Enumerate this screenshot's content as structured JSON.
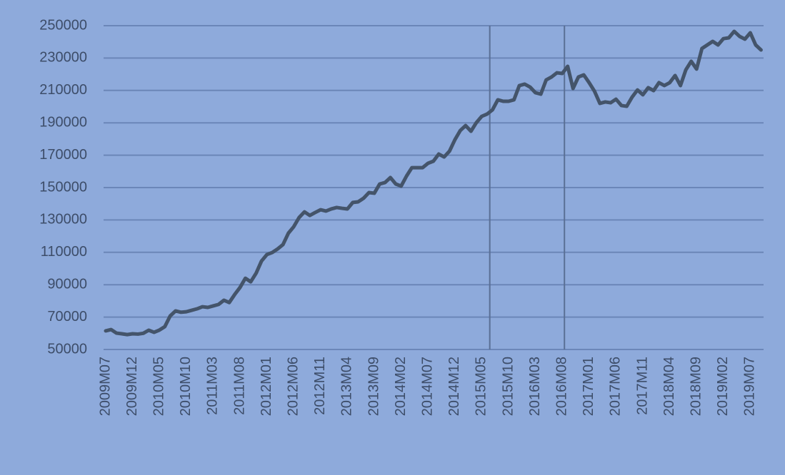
{
  "chart_data": {
    "type": "line",
    "categories": [
      "2009M07",
      null,
      null,
      null,
      null,
      "2009M12",
      null,
      null,
      null,
      null,
      "2010M05",
      null,
      null,
      null,
      null,
      "2010M10",
      null,
      null,
      null,
      null,
      "2011M03",
      null,
      null,
      null,
      null,
      "2011M08",
      null,
      null,
      null,
      null,
      "2012M01",
      null,
      null,
      null,
      null,
      "2012M06",
      null,
      null,
      null,
      null,
      "2012M11",
      null,
      null,
      null,
      null,
      "2013M04",
      null,
      null,
      null,
      null,
      "2013M09",
      null,
      null,
      null,
      null,
      "2014M02",
      null,
      null,
      null,
      null,
      "2014M07",
      null,
      null,
      null,
      null,
      "2014M12",
      null,
      null,
      null,
      null,
      "2015M05",
      null,
      null,
      null,
      null,
      "2015M10",
      null,
      null,
      null,
      null,
      "2016M03",
      null,
      null,
      null,
      null,
      "2016M08",
      null,
      null,
      null,
      null,
      "2017M01",
      null,
      null,
      null,
      null,
      "2017M06",
      null,
      null,
      null,
      null,
      "2017M11",
      null,
      null,
      null,
      null,
      "2018M04",
      null,
      null,
      null,
      null,
      "2018M09",
      null,
      null,
      null,
      null,
      "2019M02",
      null,
      null,
      null,
      null,
      "2019M07",
      null,
      null
    ],
    "values": [
      61500,
      62300,
      60100,
      59700,
      59200,
      59700,
      59500,
      60000,
      61900,
      60600,
      62000,
      64100,
      70700,
      73800,
      73000,
      73300,
      74200,
      75100,
      76400,
      76000,
      76900,
      77800,
      80400,
      79000,
      83900,
      88300,
      94000,
      91800,
      97100,
      104600,
      108600,
      109900,
      112100,
      114800,
      121800,
      125800,
      131500,
      135000,
      132800,
      134600,
      136300,
      135500,
      136800,
      137700,
      137200,
      136800,
      140800,
      141200,
      143400,
      146900,
      146500,
      152200,
      153100,
      156200,
      152200,
      150900,
      157100,
      162300,
      162300,
      162300,
      165000,
      166300,
      170700,
      168900,
      172500,
      179500,
      185200,
      188300,
      184800,
      190100,
      194000,
      195400,
      198000,
      204200,
      203300,
      203300,
      204200,
      213000,
      213900,
      212100,
      208600,
      207700,
      216500,
      218300,
      220900,
      220500,
      224900,
      211200,
      218300,
      219600,
      214800,
      209500,
      202000,
      202900,
      202400,
      204600,
      200700,
      200200,
      205900,
      210300,
      207300,
      211700,
      209900,
      214800,
      213000,
      214800,
      219200,
      213000,
      222700,
      228000,
      223200,
      235900,
      238100,
      240300,
      238100,
      242000,
      242500,
      246500,
      243400,
      241700,
      245600,
      238100,
      235000
    ],
    "color": "#44546a",
    "ylim": [
      50000,
      250000
    ],
    "yticks": [
      50000,
      70000,
      90000,
      110000,
      130000,
      150000,
      170000,
      190000,
      210000,
      230000,
      250000
    ],
    "grid": true,
    "vlines": [
      71.5,
      85.4
    ]
  }
}
